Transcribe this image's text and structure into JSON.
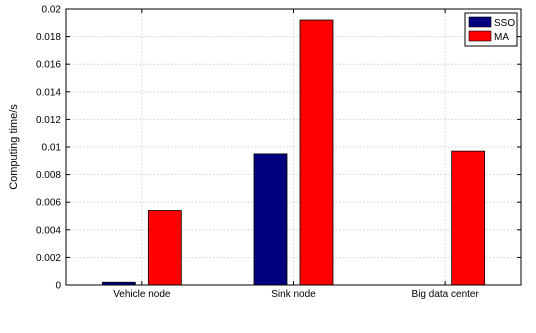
{
  "chart_data": {
    "type": "bar",
    "categories": [
      "Vehicle node",
      "Sink node",
      "Big data center"
    ],
    "series": [
      {
        "name": "SSO",
        "color": "#00007f",
        "values": [
          0.0002,
          0.0095,
          0
        ]
      },
      {
        "name": "MA",
        "color": "#ff0000",
        "values": [
          0.0054,
          0.0192,
          0.0097
        ]
      }
    ],
    "ylabel": "Computing time/s",
    "xlabel": "",
    "ylim": [
      0,
      0.02
    ],
    "yticks": [
      0,
      0.002,
      0.004,
      0.006,
      0.008,
      0.01,
      0.012,
      0.014,
      0.016,
      0.018,
      0.02
    ],
    "ytick_labels": [
      "0",
      "0.002",
      "0.004",
      "0.006",
      "0.008",
      "0.01",
      "0.012",
      "0.014",
      "0.016",
      "0.018",
      "0.02"
    ],
    "grid": true,
    "legend": "top-right"
  }
}
